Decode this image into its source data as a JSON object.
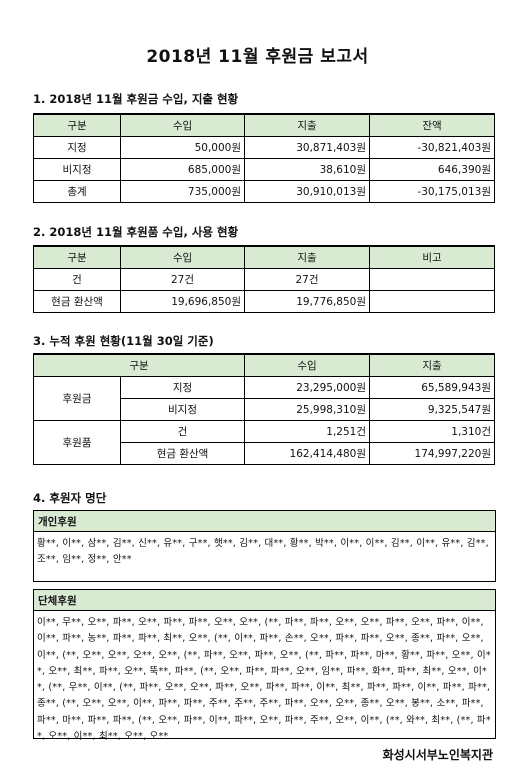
{
  "title": "2018년 11월 후원금 보고서",
  "section1": {
    "heading": "1. 2018년 11월 후원금 수입, 지출 현황",
    "headers": [
      "구분",
      "수입",
      "지출",
      "잔액"
    ],
    "rows": [
      [
        "지정",
        "50,000원",
        "30,871,403원",
        "-30,821,403원"
      ],
      [
        "비지정",
        "685,000원",
        "38,610원",
        "646,390원"
      ],
      [
        "총계",
        "735,000원",
        "30,910,013원",
        "-30,175,013원"
      ]
    ]
  },
  "section2": {
    "heading": "2. 2018년 11월 후원품 수입, 사용 현황",
    "headers": [
      "구분",
      "수입",
      "지출",
      "비고"
    ],
    "rows": [
      [
        "건",
        "27건",
        "27건",
        ""
      ],
      [
        "현금 환산액",
        "19,696,850원",
        "19,776,850원",
        ""
      ]
    ]
  },
  "section3": {
    "heading": "3. 누적 후원 현황(11월 30일 기준)",
    "headers": [
      "구분",
      "수입",
      "지출"
    ],
    "groups": [
      {
        "name": "후원금",
        "rows": [
          [
            "지정",
            "23,295,000원",
            "65,589,943원"
          ],
          [
            "비지정",
            "25,998,310원",
            "9,325,547원"
          ]
        ]
      },
      {
        "name": "후원품",
        "rows": [
          [
            "건",
            "1,251건",
            "1,310건"
          ],
          [
            "현금 환산액",
            "162,414,480원",
            "174,997,220원"
          ]
        ]
      }
    ]
  },
  "section4": {
    "heading": "4. 후원자 명단",
    "individual_label": "개인후원",
    "individual_text": "황**, 이**, 삼**, 김**, 신**, 유**, 구**, 햇**, 김**, 대**, 황**, 박**, 이**, 이**, 김**, 이**, 유**, 김**, 조**, 임**, 정**, 안**",
    "group_label": "단체후원",
    "group_text": "이**, 무**, 오**, 파**, 오**, 파**, 파**, 오**, 오**, (**, 파**, 파**, 오**, 오**, 파**, 오**, 파**, 이**, 이**, 파**, 농**, 파**, 파**, 최**, 오**, (**, 이**, 파**, 손**, 오**, 파**, 파**, 오**, 종**, 파**, 오**, 이**, (**, 오**, 오**, 오**, 오**, (**, 파**, 오**, 파**, 오**, (**, 파**, 파**, 마**, 황**, 파**, 오**, 이**, 오**, 최**, 파**, 오**, 뚝**, 파**, (**, 오**, 파**, 파**, 오**, 임**, 파**, 화**, 파**, 최**, 오**, 이**, (**, 우**, 이**, (**, 파**, 오**, 오**, 파**, 오**, 파**, 파**, 이**, 최**, 파**, 파**, 이**, 파**, 파**, 종**, (**, 오**, 오**, 이**, 파**, 파**, 주**, 주**, 주**, 파**, 오**, 오**, 종**, 오**, 봉**, 소**, 파**, 파**, 마**, 파**, 파**, (**, 오**, 파**, 이**, 파**, 오**, 파**, 주**, 오**, 이**, (**, 와**, 최**, (**, 파**, 오**, 이**, 최**, 오**, 오**"
  },
  "footer": "화성시서부노인복지관"
}
